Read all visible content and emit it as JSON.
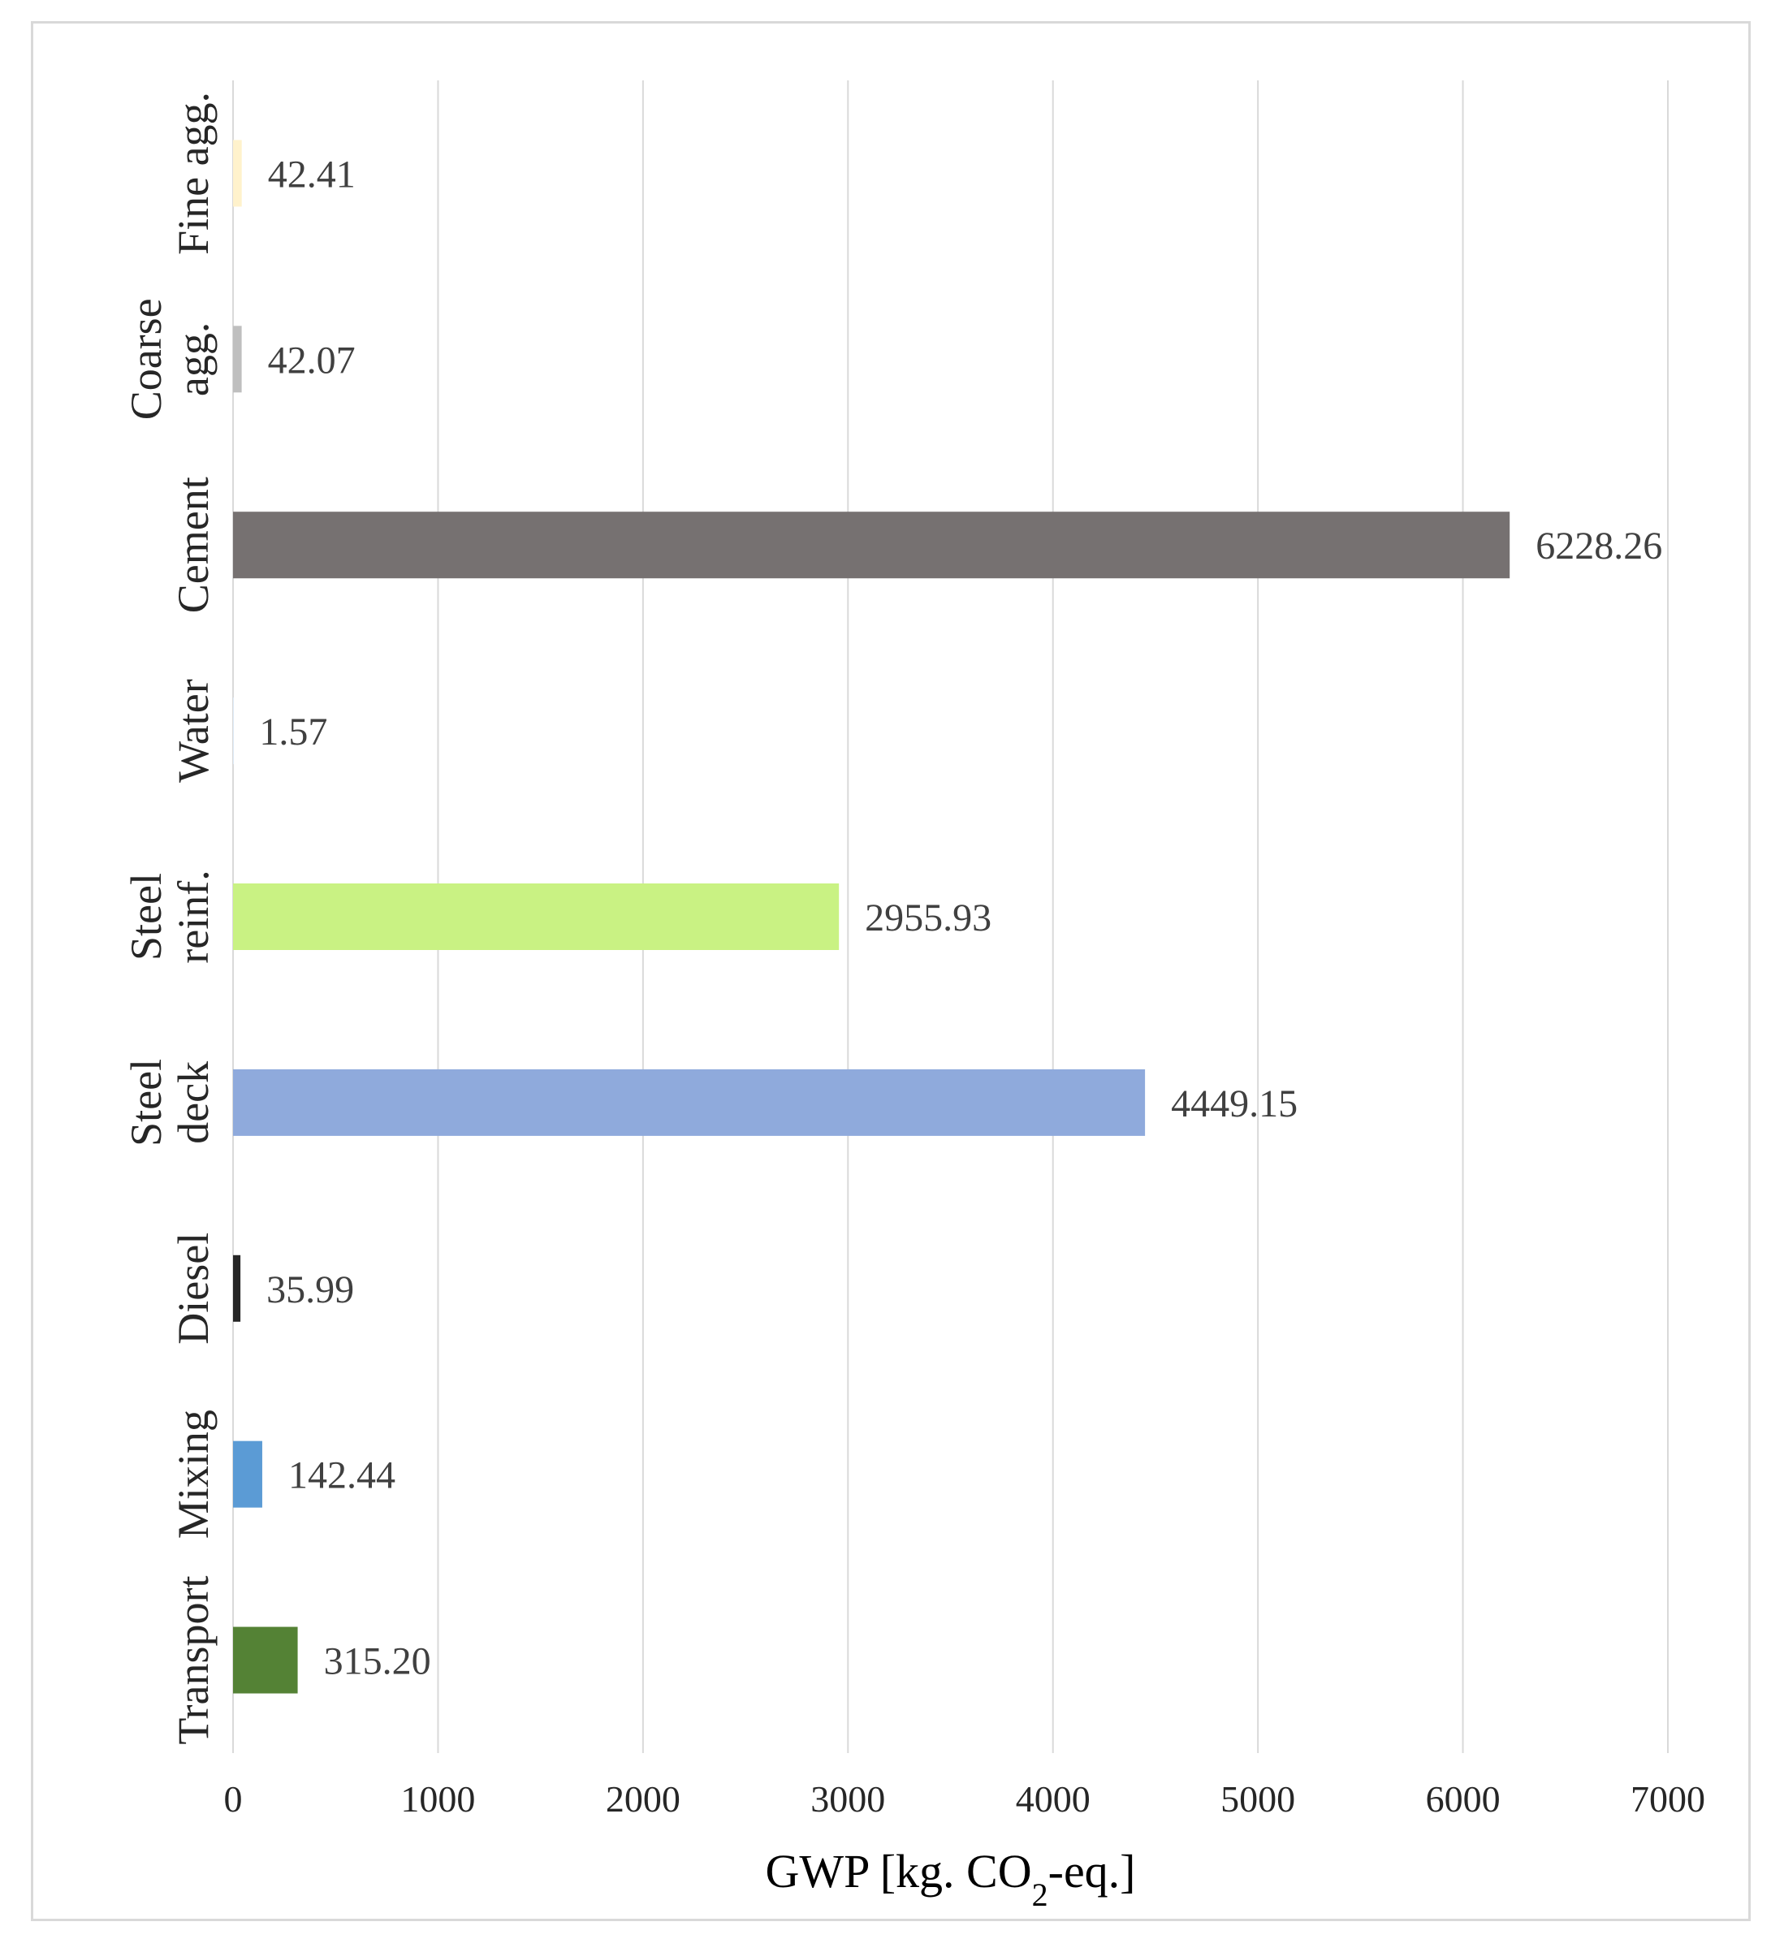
{
  "chart_data": {
    "type": "bar",
    "orientation": "horizontal",
    "categories": [
      [
        "Fine agg."
      ],
      [
        "Coarse",
        "agg."
      ],
      [
        "Cement"
      ],
      [
        "Water"
      ],
      [
        "Steel",
        "reinf."
      ],
      [
        "Steel",
        "deck"
      ],
      [
        "Diesel"
      ],
      [
        "Mixing"
      ],
      [
        "Transport"
      ]
    ],
    "values": [
      42.41,
      42.07,
      6228.26,
      1.57,
      2955.93,
      4449.15,
      35.99,
      142.44,
      315.2
    ],
    "value_labels": [
      "42.41",
      "42.07",
      "6228.26",
      "1.57",
      "2955.93",
      "4449.15",
      "35.99",
      "142.44",
      "315.20"
    ],
    "colors": [
      "#FFF2CC",
      "#BFBFBF",
      "#767171",
      "#DEEBF7",
      "#C9F283",
      "#8FAADC",
      "#262626",
      "#5B9BD5",
      "#548235"
    ],
    "xlim": [
      0,
      7000
    ],
    "xticks": [
      0,
      1000,
      2000,
      3000,
      4000,
      5000,
      6000,
      7000
    ],
    "xlabel": {
      "main": "GWP [kg. CO",
      "sub": "2",
      "tail": "-eq.]"
    },
    "ylabel": "",
    "title": "",
    "grid": "vertical",
    "legend": "none"
  }
}
